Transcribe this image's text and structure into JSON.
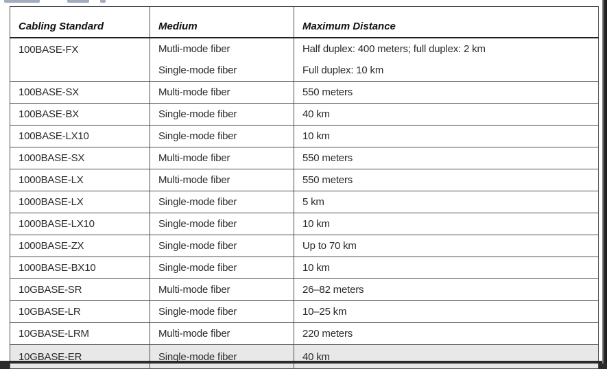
{
  "table": {
    "headers": [
      "Cabling Standard",
      "Medium",
      "Maximum Distance"
    ],
    "first_entry": {
      "standard": "100BASE-FX",
      "sub_rows": [
        {
          "medium": "Mutli-mode fiber",
          "distance": "Half duplex: 400 meters; full duplex: 2 km"
        },
        {
          "medium": "Single-mode fiber",
          "distance": "Full duplex: 10 km"
        }
      ]
    },
    "rows": [
      {
        "standard": "100BASE-SX",
        "medium": "Multi-mode fiber",
        "distance": "550 meters"
      },
      {
        "standard": "100BASE-BX",
        "medium": "Single-mode fiber",
        "distance": "40 km"
      },
      {
        "standard": "100BASE-LX10",
        "medium": "Single-mode fiber",
        "distance": "10 km"
      },
      {
        "standard": "1000BASE-SX",
        "medium": "Multi-mode fiber",
        "distance": "550 meters"
      },
      {
        "standard": "1000BASE-LX",
        "medium": "Multi-mode fiber",
        "distance": "550 meters"
      },
      {
        "standard": "1000BASE-LX",
        "medium": "Single-mode fiber",
        "distance": "5 km"
      },
      {
        "standard": "1000BASE-LX10",
        "medium": "Single-mode fiber",
        "distance": "10 km"
      },
      {
        "standard": "1000BASE-ZX",
        "medium": "Single-mode fiber",
        "distance": "Up to 70 km"
      },
      {
        "standard": "1000BASE-BX10",
        "medium": "Single-mode fiber",
        "distance": "10 km"
      },
      {
        "standard": "10GBASE-SR",
        "medium": "Multi-mode fiber",
        "distance": "26–82 meters"
      },
      {
        "standard": "10GBASE-LR",
        "medium": "Single-mode fiber",
        "distance": "10–25 km"
      },
      {
        "standard": "10GBASE-LRM",
        "medium": "Multi-mode fiber",
        "distance": "220 meters"
      },
      {
        "standard": "10GBASE-ER",
        "medium": "Single-mode fiber",
        "distance": "40 km"
      }
    ]
  }
}
